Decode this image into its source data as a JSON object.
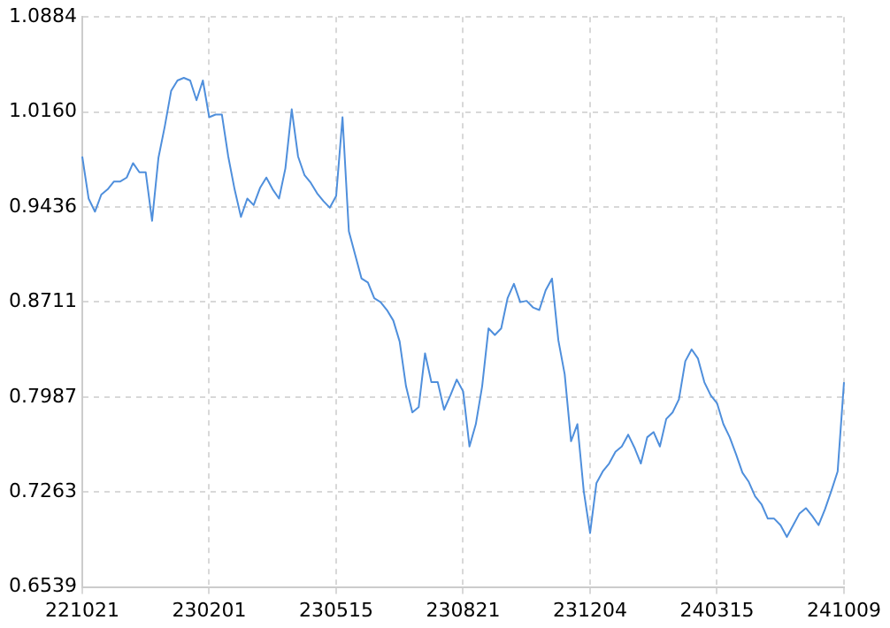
{
  "chart_data": {
    "type": "line",
    "categories": [
      "221021",
      null,
      null,
      null,
      null,
      null,
      null,
      null,
      null,
      null,
      null,
      null,
      null,
      null,
      null,
      null,
      null,
      null,
      null,
      null,
      "230201",
      null,
      null,
      null,
      null,
      null,
      null,
      null,
      null,
      null,
      null,
      null,
      null,
      null,
      null,
      null,
      null,
      null,
      null,
      null,
      "230515",
      null,
      null,
      null,
      null,
      null,
      null,
      null,
      null,
      null,
      null,
      null,
      null,
      null,
      null,
      null,
      null,
      null,
      null,
      null,
      "230821",
      null,
      null,
      null,
      null,
      null,
      null,
      null,
      null,
      null,
      null,
      null,
      null,
      null,
      null,
      null,
      null,
      null,
      null,
      null,
      "231204",
      null,
      null,
      null,
      null,
      null,
      null,
      null,
      null,
      null,
      null,
      null,
      null,
      null,
      null,
      null,
      null,
      null,
      null,
      null,
      "240315",
      null,
      null,
      null,
      null,
      null,
      null,
      null,
      null,
      null,
      null,
      null,
      null,
      null,
      null,
      null,
      null,
      null,
      null,
      null,
      "241009"
    ],
    "series": [
      {
        "color": "#4f8fdc",
        "values": [
          0.982,
          0.95,
          0.94,
          0.953,
          0.957,
          0.963,
          0.963,
          0.966,
          0.977,
          0.97,
          0.97,
          0.933,
          0.981,
          1.005,
          1.032,
          1.04,
          1.042,
          1.04,
          1.025,
          1.04,
          1.012,
          1.014,
          1.014,
          0.982,
          0.957,
          0.936,
          0.95,
          0.945,
          0.958,
          0.966,
          0.957,
          0.95,
          0.973,
          1.018,
          0.982,
          0.968,
          0.962,
          0.954,
          0.948,
          0.943,
          0.952,
          1.012,
          0.925,
          0.907,
          0.889,
          0.886,
          0.874,
          0.871,
          0.865,
          0.857,
          0.841,
          0.807,
          0.787,
          0.791,
          0.832,
          0.81,
          0.81,
          0.789,
          0.8,
          0.812,
          0.803,
          0.761,
          0.778,
          0.807,
          0.851,
          0.846,
          0.851,
          0.874,
          0.885,
          0.871,
          0.872,
          0.867,
          0.865,
          0.88,
          0.889,
          0.842,
          0.816,
          0.765,
          0.778,
          0.727,
          0.695,
          0.733,
          0.742,
          0.748,
          0.757,
          0.761,
          0.77,
          0.76,
          0.748,
          0.768,
          0.772,
          0.761,
          0.782,
          0.787,
          0.797,
          0.826,
          0.835,
          0.828,
          0.81,
          0.8,
          0.794,
          0.778,
          0.768,
          0.755,
          0.741,
          0.734,
          0.723,
          0.717,
          0.706,
          0.706,
          0.701,
          0.692,
          0.701,
          0.71,
          0.714,
          0.708,
          0.701,
          0.713,
          0.727,
          0.742,
          0.81
        ]
      }
    ],
    "ylim": [
      0.6539,
      1.0884
    ],
    "yticks": [
      0.6539,
      0.7263,
      0.7987,
      0.8711,
      0.9436,
      {
        "value": 1.016,
        "label": "1.0160"
      },
      1.0884
    ],
    "grid": true,
    "legend": false,
    "marker": "none",
    "line_style": "solid"
  }
}
